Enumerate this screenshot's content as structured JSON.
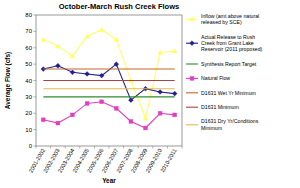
{
  "chart_data": {
    "type": "line",
    "title": "October-March Rush Creek Flows",
    "x_label": "Year",
    "y_label": "Average Flow (cfs)",
    "categories": [
      "2001-2002",
      "2002-2003",
      "2003-2004",
      "2004-2005",
      "2005-2006",
      "2006-2007",
      "2007-2008",
      "2008-2009",
      "2009-2010",
      "2010-2011"
    ],
    "ylim": [
      0,
      80
    ],
    "yticks": [
      0,
      10,
      20,
      30,
      40,
      50,
      60,
      70,
      80
    ],
    "grid": false,
    "legend": "right",
    "series": [
      {
        "name": "Inflow (amt above natural released by SCE)",
        "color": "#ffff66",
        "marker": "triangle",
        "line_style": "solid",
        "values": [
          65,
          61,
          55,
          67,
          71,
          65,
          40,
          17,
          57,
          58
        ]
      },
      {
        "name": "Actual Release to Rush Creek from Grant Lake Reservoir (2011 proposed)",
        "color": "#1f1f8f",
        "marker": "diamond",
        "line_style": "solid",
        "values": [
          47,
          49,
          45,
          44,
          43,
          50,
          28,
          35,
          33,
          32
        ]
      },
      {
        "name": "Synthesis Report Target",
        "color": "#2e8b2e",
        "marker": "none",
        "line_style": "solid",
        "values": [
          30,
          30,
          30,
          30,
          30,
          30,
          30,
          30,
          30,
          30
        ]
      },
      {
        "name": "Natural Flow",
        "color": "#e040c0",
        "marker": "square",
        "line_style": "solid",
        "values": [
          16,
          14,
          19,
          26,
          27,
          23,
          15,
          11,
          20,
          19
        ]
      },
      {
        "name": "D1631 Wet Yr Minimum",
        "color": "#c8642a",
        "marker": "none",
        "line_style": "solid",
        "values": [
          47,
          47,
          47,
          47,
          47,
          47,
          47,
          47,
          47,
          47
        ]
      },
      {
        "name": "D1631 Minimum",
        "color": "#b04040",
        "marker": "none",
        "line_style": "solid",
        "values": [
          40,
          40,
          40,
          40,
          40,
          40,
          40,
          40,
          40,
          40
        ]
      },
      {
        "name": "D1631 Dry Yr/Conditions Minimum",
        "color": "#e6b84a",
        "marker": "none",
        "line_style": "solid",
        "values": [
          35,
          35,
          35,
          35,
          35,
          35,
          35,
          35,
          35,
          35
        ]
      }
    ]
  }
}
